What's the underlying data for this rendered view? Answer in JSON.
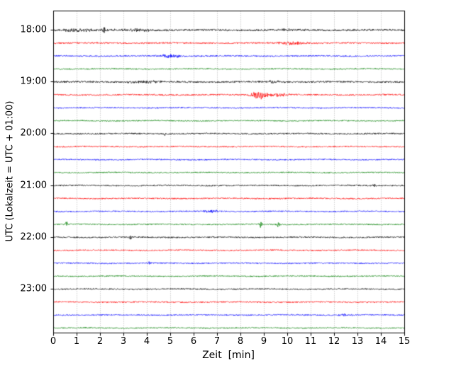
{
  "chart_data": {
    "type": "seismogram",
    "title": "",
    "xlabel": "Zeit  [min]",
    "ylabel": "UTC (Lokalzeit = UTC + 01:00)",
    "xlim": [
      0,
      15
    ],
    "minutes_per_line": 15,
    "x_ticks": [
      "0",
      "1",
      "2",
      "3",
      "4",
      "5",
      "6",
      "7",
      "8",
      "9",
      "10",
      "11",
      "12",
      "13",
      "14",
      "15"
    ],
    "y_tick_labels": [
      "18:00",
      "19:00",
      "20:00",
      "21:00",
      "22:00",
      "23:00"
    ],
    "grid": {
      "vertical": true,
      "style": "dotted",
      "color": "#b0b0b0"
    },
    "trace_colors_cycle": [
      "#000000",
      "#ff0000",
      "#0000ff",
      "#008000"
    ],
    "traces": [
      {
        "time": "18:00",
        "color": "#000000",
        "noise": 1.4,
        "events": [
          {
            "t": 2.2,
            "amp": 5.0,
            "w": 0.15
          },
          {
            "t": 1.0,
            "amp": 1.6,
            "w": 1.2
          },
          {
            "t": 3.6,
            "amp": 1.3,
            "w": 1.2
          },
          {
            "t": 10.0,
            "amp": 1.0,
            "w": 0.8
          }
        ]
      },
      {
        "time": "18:15",
        "color": "#ff0000",
        "noise": 1.15,
        "events": [
          {
            "t": 10.2,
            "amp": 2.6,
            "w": 0.8
          }
        ]
      },
      {
        "time": "18:30",
        "color": "#0000ff",
        "noise": 1.05,
        "events": [
          {
            "t": 5.0,
            "amp": 2.4,
            "w": 0.7
          }
        ]
      },
      {
        "time": "18:45",
        "color": "#008000",
        "noise": 0.95,
        "events": []
      },
      {
        "time": "19:00",
        "color": "#000000",
        "noise": 1.3,
        "events": [
          {
            "t": 4.0,
            "amp": 1.6,
            "w": 1.0
          },
          {
            "t": 9.3,
            "amp": 1.2,
            "w": 0.9
          }
        ]
      },
      {
        "time": "19:15",
        "color": "#ff0000",
        "noise": 1.1,
        "events": [
          {
            "t": 8.8,
            "amp": 6.0,
            "w": 0.45
          },
          {
            "t": 9.6,
            "amp": 2.0,
            "w": 0.9
          }
        ]
      },
      {
        "time": "19:30",
        "color": "#0000ff",
        "noise": 0.95,
        "events": []
      },
      {
        "time": "19:45",
        "color": "#008000",
        "noise": 0.9,
        "events": []
      },
      {
        "time": "20:00",
        "color": "#000000",
        "noise": 1.1,
        "events": [
          {
            "t": 4.75,
            "amp": 2.2,
            "w": 0.1
          }
        ]
      },
      {
        "time": "20:15",
        "color": "#ff0000",
        "noise": 1.0,
        "events": []
      },
      {
        "time": "20:30",
        "color": "#0000ff",
        "noise": 0.95,
        "events": []
      },
      {
        "time": "20:45",
        "color": "#008000",
        "noise": 0.9,
        "events": []
      },
      {
        "time": "21:00",
        "color": "#000000",
        "noise": 1.05,
        "events": [
          {
            "t": 13.7,
            "amp": 1.8,
            "w": 0.1
          }
        ]
      },
      {
        "time": "21:15",
        "color": "#ff0000",
        "noise": 1.0,
        "events": []
      },
      {
        "time": "21:30",
        "color": "#0000ff",
        "noise": 0.95,
        "events": [
          {
            "t": 6.8,
            "amp": 2.2,
            "w": 0.5
          }
        ]
      },
      {
        "time": "21:45",
        "color": "#008000",
        "noise": 0.9,
        "events": [
          {
            "t": 0.55,
            "amp": 4.2,
            "w": 0.1
          },
          {
            "t": 8.85,
            "amp": 5.0,
            "w": 0.1
          },
          {
            "t": 9.6,
            "amp": 4.0,
            "w": 0.1
          }
        ]
      },
      {
        "time": "22:00",
        "color": "#000000",
        "noise": 1.05,
        "events": [
          {
            "t": 3.3,
            "amp": 3.6,
            "w": 0.1
          }
        ]
      },
      {
        "time": "22:15",
        "color": "#ff0000",
        "noise": 1.0,
        "events": []
      },
      {
        "time": "22:30",
        "color": "#0000ff",
        "noise": 0.95,
        "events": [
          {
            "t": 4.1,
            "amp": 1.6,
            "w": 0.12
          }
        ]
      },
      {
        "time": "22:45",
        "color": "#008000",
        "noise": 0.9,
        "events": []
      },
      {
        "time": "23:00",
        "color": "#000000",
        "noise": 1.0,
        "events": []
      },
      {
        "time": "23:15",
        "color": "#ff0000",
        "noise": 1.0,
        "events": []
      },
      {
        "time": "23:30",
        "color": "#0000ff",
        "noise": 0.95,
        "events": [
          {
            "t": 12.5,
            "amp": 1.6,
            "w": 0.4
          }
        ]
      },
      {
        "time": "23:45",
        "color": "#008000",
        "noise": 0.9,
        "events": []
      }
    ]
  }
}
